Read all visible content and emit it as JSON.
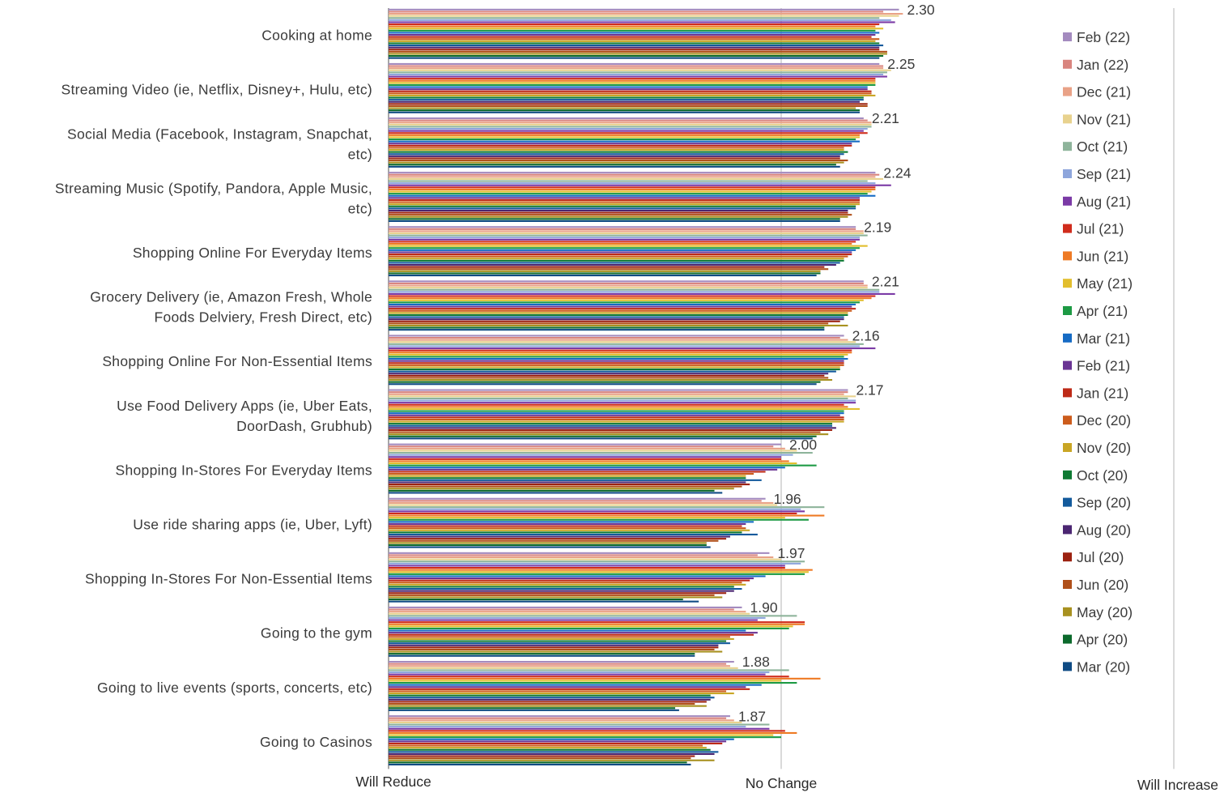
{
  "chart_data": {
    "type": "bar",
    "orientation": "horizontal",
    "title": "",
    "xlim": [
      1,
      3
    ],
    "x_ticks": [
      {
        "value": 1,
        "label": "Will Reduce"
      },
      {
        "value": 2,
        "label": "No Change"
      },
      {
        "value": 3,
        "label": "Will Increase"
      }
    ],
    "grid": "vertical lines at tick values",
    "legend_position": "right",
    "categories": [
      "Cooking at home",
      "Streaming Video (ie, Netflix, Disney+, Hulu, etc)",
      "Social Media  (Facebook, Instagram, Snapchat, etc)",
      "Streaming Music (Spotify, Pandora, Apple Music, etc)",
      "Shopping Online For Everyday Items",
      "Grocery Delivery (ie, Amazon Fresh, Whole Foods Delviery, Fresh Direct, etc)",
      "Shopping Online For Non-Essential Items",
      "Use Food Delivery Apps (ie, Uber Eats, DoorDash, Grubhub)",
      "Shopping In-Stores For Everyday Items",
      "Use ride sharing apps (ie, Uber, Lyft)",
      "Shopping In-Stores For Non-Essential Items",
      "Going to the gym",
      "Going to live events (sports, concerts, etc)",
      "Going to Casinos"
    ],
    "category_label_lines": [
      [
        "Cooking at home"
      ],
      [
        "Streaming Video (ie, Netflix, Disney+, Hulu, etc)"
      ],
      [
        "Social Media  (Facebook, Instagram, Snapchat,",
        "etc)"
      ],
      [
        "Streaming Music (Spotify, Pandora, Apple Music,",
        "etc)"
      ],
      [
        "Shopping Online For Everyday Items"
      ],
      [
        "Grocery Delivery (ie, Amazon Fresh, Whole",
        "Foods Delviery, Fresh Direct, etc)"
      ],
      [
        "Shopping Online For Non-Essential Items"
      ],
      [
        "Use Food Delivery Apps (ie, Uber Eats,",
        "DoorDash, Grubhub)"
      ],
      [
        "Shopping In-Stores For Everyday Items"
      ],
      [
        "Use ride sharing apps (ie, Uber, Lyft)"
      ],
      [
        "Shopping In-Stores For Non-Essential Items"
      ],
      [
        "Going to the gym"
      ],
      [
        "Going to live events (sports, concerts, etc)"
      ],
      [
        "Going to Casinos"
      ]
    ],
    "data_labels": [
      "2.30",
      "2.25",
      "2.21",
      "2.24",
      "2.19",
      "2.21",
      "2.16",
      "2.17",
      "2.00",
      "1.96",
      "1.97",
      "1.90",
      "1.88",
      "1.87"
    ],
    "series": [
      {
        "name": "Feb (22)",
        "color": "#a48bbf",
        "values": [
          2.3,
          2.25,
          2.21,
          2.24,
          2.19,
          2.21,
          2.16,
          2.17,
          2.0,
          1.96,
          1.97,
          1.9,
          1.88,
          1.87
        ]
      },
      {
        "name": "Jan (22)",
        "color": "#d9857f",
        "values": [
          2.26,
          2.26,
          2.22,
          2.25,
          2.19,
          2.21,
          2.15,
          2.17,
          1.98,
          1.95,
          1.94,
          1.88,
          1.86,
          1.86
        ]
      },
      {
        "name": "Dec (21)",
        "color": "#e9a287",
        "values": [
          2.31,
          2.26,
          2.23,
          2.24,
          2.21,
          2.22,
          2.17,
          2.16,
          2.01,
          1.98,
          1.98,
          1.91,
          1.87,
          1.88
        ]
      },
      {
        "name": "Nov (21)",
        "color": "#e8d28e",
        "values": [
          2.3,
          2.28,
          2.23,
          2.26,
          2.21,
          2.22,
          2.19,
          2.19,
          2.04,
          1.99,
          2.0,
          1.92,
          1.89,
          1.9
        ]
      },
      {
        "name": "Oct (21)",
        "color": "#8eb49b",
        "values": [
          2.25,
          2.27,
          2.23,
          2.22,
          2.22,
          2.25,
          2.21,
          2.17,
          2.08,
          2.11,
          2.06,
          2.04,
          2.02,
          1.97
        ]
      },
      {
        "name": "Sep (21)",
        "color": "#8ea6dc",
        "values": [
          2.28,
          2.26,
          2.22,
          2.24,
          2.2,
          2.25,
          2.2,
          2.19,
          2.03,
          2.05,
          2.05,
          1.96,
          1.97,
          1.91
        ]
      },
      {
        "name": "Aug (21)",
        "color": "#7b3aa6",
        "values": [
          2.29,
          2.27,
          2.21,
          2.28,
          2.2,
          2.29,
          2.24,
          2.19,
          2.0,
          2.06,
          2.01,
          1.94,
          1.96,
          1.97
        ]
      },
      {
        "name": "Jul (21)",
        "color": "#d02c1c",
        "values": [
          2.25,
          2.24,
          2.22,
          2.24,
          2.19,
          2.24,
          2.18,
          2.16,
          2.0,
          2.04,
          2.01,
          2.06,
          2.02,
          2.01
        ]
      },
      {
        "name": "Jun (21)",
        "color": "#ee7a24",
        "values": [
          2.24,
          2.24,
          2.2,
          2.24,
          2.18,
          2.23,
          2.18,
          2.17,
          2.02,
          2.11,
          2.08,
          2.06,
          2.1,
          2.04
        ]
      },
      {
        "name": "May (21)",
        "color": "#e2be2d",
        "values": [
          2.26,
          2.24,
          2.2,
          2.23,
          2.22,
          2.21,
          2.17,
          2.2,
          2.04,
          2.01,
          2.07,
          2.03,
          2.0,
          1.98
        ]
      },
      {
        "name": "Apr (21)",
        "color": "#1d9a44",
        "values": [
          2.24,
          2.24,
          2.19,
          2.22,
          2.2,
          2.2,
          2.16,
          2.16,
          2.09,
          2.07,
          2.06,
          2.02,
          2.04,
          2.0
        ]
      },
      {
        "name": "Mar (21)",
        "color": "#166bc4",
        "values": [
          2.25,
          2.22,
          2.2,
          2.24,
          2.19,
          2.19,
          2.17,
          2.16,
          2.01,
          1.93,
          1.96,
          1.91,
          1.95,
          1.88
        ]
      },
      {
        "name": "Feb (21)",
        "color": "#6a3494",
        "values": [
          2.24,
          2.22,
          2.18,
          2.2,
          2.18,
          2.18,
          2.16,
          2.15,
          1.99,
          1.91,
          1.93,
          1.94,
          1.91,
          1.86
        ]
      },
      {
        "name": "Jan (21)",
        "color": "#be2a17",
        "values": [
          2.23,
          2.23,
          2.18,
          2.2,
          2.18,
          2.19,
          2.16,
          2.16,
          1.96,
          1.9,
          1.92,
          1.93,
          1.92,
          1.85
        ]
      },
      {
        "name": "Dec (20)",
        "color": "#cc5c1c",
        "values": [
          2.25,
          2.23,
          2.16,
          2.2,
          2.17,
          2.18,
          2.16,
          2.16,
          1.93,
          1.91,
          1.9,
          1.87,
          1.86,
          1.8
        ]
      },
      {
        "name": "Nov (20)",
        "color": "#c9a625",
        "values": [
          2.24,
          2.24,
          2.16,
          2.2,
          2.16,
          2.17,
          2.15,
          2.16,
          1.91,
          1.92,
          1.91,
          1.88,
          1.88,
          1.81
        ]
      },
      {
        "name": "Oct (20)",
        "color": "#0f7a33",
        "values": [
          2.25,
          2.21,
          2.17,
          2.19,
          2.16,
          2.17,
          2.15,
          2.13,
          1.91,
          1.9,
          1.88,
          1.86,
          1.82,
          1.82
        ]
      },
      {
        "name": "Sep (20)",
        "color": "#135a9c",
        "values": [
          2.26,
          2.21,
          2.16,
          2.19,
          2.15,
          2.16,
          2.14,
          2.13,
          1.95,
          1.94,
          1.9,
          1.87,
          1.83,
          1.84
        ]
      },
      {
        "name": "Aug (20)",
        "color": "#4b2672",
        "values": [
          2.25,
          2.2,
          2.15,
          2.17,
          2.14,
          2.16,
          2.12,
          2.14,
          1.91,
          1.87,
          1.88,
          1.84,
          1.82,
          1.83
        ]
      },
      {
        "name": "Jul (20)",
        "color": "#9c2211",
        "values": [
          2.25,
          2.22,
          2.15,
          2.17,
          2.11,
          2.15,
          2.11,
          2.13,
          1.92,
          1.86,
          1.86,
          1.84,
          1.81,
          1.78
        ]
      },
      {
        "name": "Jun (20)",
        "color": "#b0501a",
        "values": [
          2.27,
          2.22,
          2.17,
          2.18,
          2.12,
          2.12,
          2.12,
          2.1,
          1.9,
          1.84,
          1.83,
          1.83,
          1.78,
          1.77
        ]
      },
      {
        "name": "May (20)",
        "color": "#a89120",
        "values": [
          2.27,
          2.19,
          2.16,
          2.17,
          2.1,
          2.17,
          2.13,
          2.12,
          1.88,
          1.81,
          1.85,
          1.85,
          1.81,
          1.83
        ]
      },
      {
        "name": "Apr (20)",
        "color": "#0c6a2c",
        "values": [
          2.26,
          2.2,
          2.14,
          2.15,
          2.1,
          2.11,
          2.1,
          2.09,
          1.83,
          1.81,
          1.75,
          1.78,
          1.73,
          1.76
        ]
      },
      {
        "name": "Mar (20)",
        "color": "#0f4b84",
        "values": [
          2.25,
          2.2,
          2.15,
          2.15,
          2.09,
          2.11,
          2.09,
          2.08,
          1.85,
          1.82,
          1.79,
          1.78,
          1.74,
          1.77
        ]
      }
    ]
  }
}
